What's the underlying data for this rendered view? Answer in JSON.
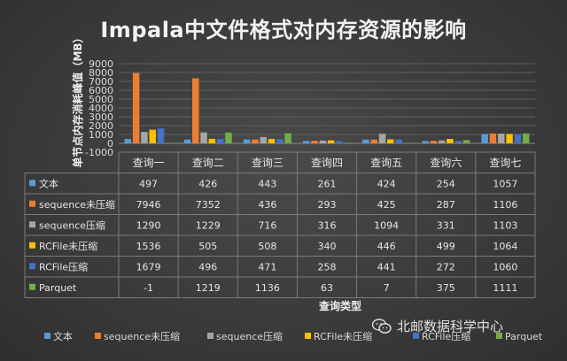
{
  "chart_data": {
    "type": "bar",
    "title": "Impala中文件格式对内存资源的影响",
    "ylabel": "单节点内存消耗峰值（MB）",
    "xlabel": "查询类型",
    "ylim": [
      -1000,
      9000
    ],
    "yticks": [
      -1000,
      0,
      1000,
      2000,
      3000,
      4000,
      5000,
      6000,
      7000,
      8000,
      9000
    ],
    "categories": [
      "查询一",
      "查询二",
      "查询三",
      "查询四",
      "查询五",
      "查询六",
      "查询七"
    ],
    "series": [
      {
        "name": "文本",
        "color": "#5b9bd5",
        "values": [
          497,
          426,
          443,
          261,
          424,
          254,
          1057
        ]
      },
      {
        "name": "sequence未压缩",
        "color": "#ed7d31",
        "values": [
          7946,
          7352,
          436,
          293,
          425,
          287,
          1106
        ]
      },
      {
        "name": "sequence压缩",
        "color": "#a5a5a5",
        "values": [
          1290,
          1229,
          716,
          316,
          1094,
          331,
          1103
        ]
      },
      {
        "name": "RCFile未压缩",
        "color": "#ffc000",
        "values": [
          1536,
          505,
          508,
          340,
          446,
          499,
          1064
        ]
      },
      {
        "name": "RCFile压缩",
        "color": "#4472c4",
        "values": [
          1679,
          496,
          471,
          258,
          441,
          272,
          1060
        ]
      },
      {
        "name": "Parquet",
        "color": "#70ad47",
        "values": [
          -1,
          1219,
          1136,
          63,
          7,
          375,
          1111
        ]
      }
    ],
    "legend_position": "bottom",
    "grid": true
  },
  "watermark": {
    "text": "北邮数据科学中心",
    "icon": "wechat-icon"
  }
}
